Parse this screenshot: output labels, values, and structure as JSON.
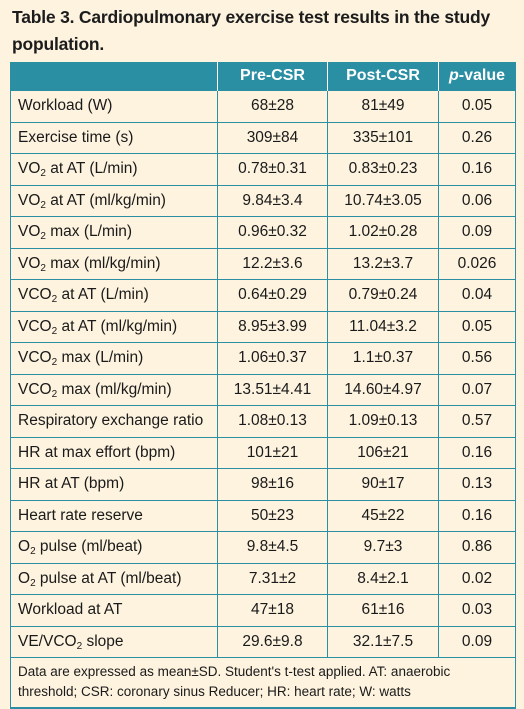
{
  "caption_line1": "Table 3. Cardiopulmonary exercise test results in the study",
  "caption_line2": "population.",
  "headers": {
    "col1": "",
    "col2": "Pre-CSR",
    "col3": "Post-CSR",
    "col4_italic": "p",
    "col4_rest": "-value"
  },
  "rows": [
    {
      "pre": "Workload (W)",
      "sub": "",
      "post": "",
      "pre_val": "68±28",
      "post_val": "81±49",
      "p": "0.05"
    },
    {
      "pre": "Exercise time (s)",
      "sub": "",
      "post": "",
      "pre_val": "309±84",
      "post_val": "335±101",
      "p": "0.26"
    },
    {
      "pre": "VO",
      "sub": "2",
      "post": " at AT (L/min)",
      "pre_val": "0.78±0.31",
      "post_val": "0.83±0.23",
      "p": "0.16"
    },
    {
      "pre": "VO",
      "sub": "2",
      "post": " at AT (ml/kg/min)",
      "pre_val": "9.84±3.4",
      "post_val": "10.74±3.05",
      "p": "0.06"
    },
    {
      "pre": "VO",
      "sub": "2",
      "post": " max (L/min)",
      "pre_val": "0.96±0.32",
      "post_val": "1.02±0.28",
      "p": "0.09"
    },
    {
      "pre": "VO",
      "sub": "2",
      "post": " max (ml/kg/min)",
      "pre_val": "12.2±3.6",
      "post_val": "13.2±3.7",
      "p": "0.026"
    },
    {
      "pre": "VCO",
      "sub": "2",
      "post": " at AT (L/min)",
      "pre_val": "0.64±0.29",
      "post_val": "0.79±0.24",
      "p": "0.04"
    },
    {
      "pre": "VCO",
      "sub": "2",
      "post": " at AT (ml/kg/min)",
      "pre_val": "8.95±3.99",
      "post_val": "11.04±3.2",
      "p": "0.05"
    },
    {
      "pre": "VCO",
      "sub": "2",
      "post": " max (L/min)",
      "pre_val": "1.06±0.37",
      "post_val": "1.1±0.37",
      "p": "0.56"
    },
    {
      "pre": "VCO",
      "sub": "2",
      "post": " max (ml/kg/min)",
      "pre_val": "13.51±4.41",
      "post_val": "14.60±4.97",
      "p": "0.07"
    },
    {
      "pre": "Respiratory exchange ratio",
      "sub": "",
      "post": "",
      "pre_val": "1.08±0.13",
      "post_val": "1.09±0.13",
      "p": "0.57"
    },
    {
      "pre": "HR at max effort (bpm)",
      "sub": "",
      "post": "",
      "pre_val": "101±21",
      "post_val": "106±21",
      "p": "0.16"
    },
    {
      "pre": "HR at AT (bpm)",
      "sub": "",
      "post": "",
      "pre_val": "98±16",
      "post_val": "90±17",
      "p": "0.13"
    },
    {
      "pre": "Heart rate reserve",
      "sub": "",
      "post": "",
      "pre_val": "50±23",
      "post_val": "45±22",
      "p": "0.16"
    },
    {
      "pre": "O",
      "sub": "2",
      "post": " pulse (ml/beat)",
      "pre_val": "9.8±4.5",
      "post_val": "9.7±3",
      "p": "0.86"
    },
    {
      "pre": "O",
      "sub": "2",
      "post": " pulse at AT (ml/beat)",
      "pre_val": "7.31±2",
      "post_val": "8.4±2.1",
      "p": "0.02"
    },
    {
      "pre": "Workload at AT",
      "sub": "",
      "post": "",
      "pre_val": "47±18",
      "post_val": "61±16",
      "p": "0.03"
    },
    {
      "pre": "VE/VCO",
      "sub": "2",
      "post": " slope",
      "pre_val": "29.6±9.8",
      "post_val": "32.1±7.5",
      "p": "0.09"
    }
  ],
  "footnote_line1": "Data are expressed as mean±SD. Student's t-test applied. AT: anaerobic",
  "footnote_line2": "threshold; CSR: coronary sinus Reducer; HR: heart rate; W: watts",
  "colors": {
    "header_bg": "#2a8fa3",
    "page_bg": "#fdf3df",
    "grid_line": "#2a8fa3"
  }
}
